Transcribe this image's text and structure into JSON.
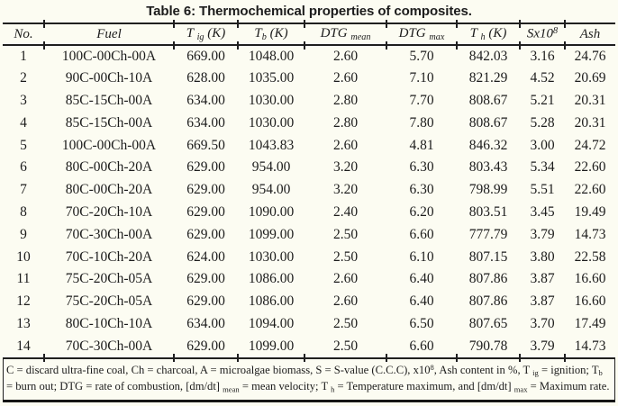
{
  "title": "Table 6: Thermochemical properties of composites.",
  "table": {
    "columns": [
      {
        "name": "no",
        "segments": [
          {
            "t": "No."
          }
        ]
      },
      {
        "name": "fuel",
        "segments": [
          {
            "t": "Fuel"
          }
        ]
      },
      {
        "name": "t-ig",
        "segments": [
          {
            "t": "T "
          },
          {
            "t": "ig",
            "s": "sub"
          },
          {
            "t": " (K)"
          }
        ]
      },
      {
        "name": "t-b",
        "segments": [
          {
            "t": "T"
          },
          {
            "t": "b",
            "s": "sub"
          },
          {
            "t": " (K)"
          }
        ]
      },
      {
        "name": "dtg-mean",
        "segments": [
          {
            "t": "DTG "
          },
          {
            "t": "mean",
            "s": "sub"
          }
        ]
      },
      {
        "name": "dtg-max",
        "segments": [
          {
            "t": "DTG "
          },
          {
            "t": "max",
            "s": "sub"
          }
        ]
      },
      {
        "name": "t-h",
        "segments": [
          {
            "t": "T "
          },
          {
            "t": "h",
            "s": "sub"
          },
          {
            "t": " (K)"
          }
        ]
      },
      {
        "name": "s-value",
        "segments": [
          {
            "t": "Sx10"
          },
          {
            "t": "8",
            "s": "sup"
          }
        ]
      },
      {
        "name": "ash",
        "segments": [
          {
            "t": "Ash"
          }
        ]
      }
    ],
    "rows": [
      [
        "1",
        "100C-00Ch-00A",
        "669.00",
        "1048.00",
        "2.60",
        "5.70",
        "842.03",
        "3.16",
        "24.76"
      ],
      [
        "2",
        "90C-00Ch-10A",
        "628.00",
        "1035.00",
        "2.60",
        "7.10",
        "821.29",
        "4.52",
        "20.69"
      ],
      [
        "3",
        "85C-15Ch-00A",
        "634.00",
        "1030.00",
        "2.80",
        "7.70",
        "808.67",
        "5.21",
        "20.31"
      ],
      [
        "4",
        "85C-15Ch-00A",
        "634.00",
        "1030.00",
        "2.80",
        "7.80",
        "808.67",
        "5.28",
        "20.31"
      ],
      [
        "5",
        "100C-00Ch-00A",
        "669.50",
        "1043.83",
        "2.60",
        "4.81",
        "846.32",
        "3.00",
        "24.72"
      ],
      [
        "6",
        "80C-00Ch-20A",
        "629.00",
        "954.00",
        "3.20",
        "6.30",
        "803.43",
        "5.34",
        "22.60"
      ],
      [
        "7",
        "80C-00Ch-20A",
        "629.00",
        "954.00",
        "3.20",
        "6.30",
        "798.99",
        "5.51",
        "22.60"
      ],
      [
        "8",
        "70C-20Ch-10A",
        "629.00",
        "1090.00",
        "2.40",
        "6.20",
        "803.51",
        "3.45",
        "19.49"
      ],
      [
        "9",
        "70C-30Ch-00A",
        "629.00",
        "1099.00",
        "2.50",
        "6.60",
        "777.79",
        "3.79",
        "14.73"
      ],
      [
        "10",
        "70C-10Ch-20A",
        "624.00",
        "1030.00",
        "2.50",
        "6.10",
        "807.15",
        "3.80",
        "22.58"
      ],
      [
        "11",
        "75C-20Ch-05A",
        "629.00",
        "1086.00",
        "2.60",
        "6.40",
        "807.86",
        "3.87",
        "16.60"
      ],
      [
        "12",
        "75C-20Ch-05A",
        "629.00",
        "1086.00",
        "2.60",
        "6.40",
        "807.86",
        "3.87",
        "16.60"
      ],
      [
        "13",
        "80C-10Ch-10A",
        "634.00",
        "1094.00",
        "2.50",
        "6.50",
        "807.65",
        "3.70",
        "17.49"
      ],
      [
        "14",
        "70C-30Ch-00A",
        "629.00",
        "1099.00",
        "2.50",
        "6.60",
        "790.78",
        "3.79",
        "14.73"
      ]
    ]
  },
  "footnote": {
    "segments": [
      {
        "t": "C = discard ultra-fine coal, Ch = charcoal, A = microalgae biomass, S = S-value (C.C.C), x10"
      },
      {
        "t": "8",
        "s": "sup"
      },
      {
        "t": ", Ash content in %, T "
      },
      {
        "t": "ig",
        "s": "sub"
      },
      {
        "t": " = ignition; T"
      },
      {
        "t": "b",
        "s": "sub"
      },
      {
        "t": " = burn out; DTG = rate of combustion, [dm/dt] "
      },
      {
        "t": "mean",
        "s": "sub"
      },
      {
        "t": " = mean velocity; T "
      },
      {
        "t": "h",
        "s": "sub"
      },
      {
        "t": " = Temperature maximum, and [dm/dt] "
      },
      {
        "t": "max",
        "s": "sub"
      },
      {
        "t": " = Maximum rate."
      }
    ]
  },
  "colors": {
    "background": "#fcfcf2",
    "text": "#1c1c1c",
    "rule": "#1f1f1f"
  }
}
